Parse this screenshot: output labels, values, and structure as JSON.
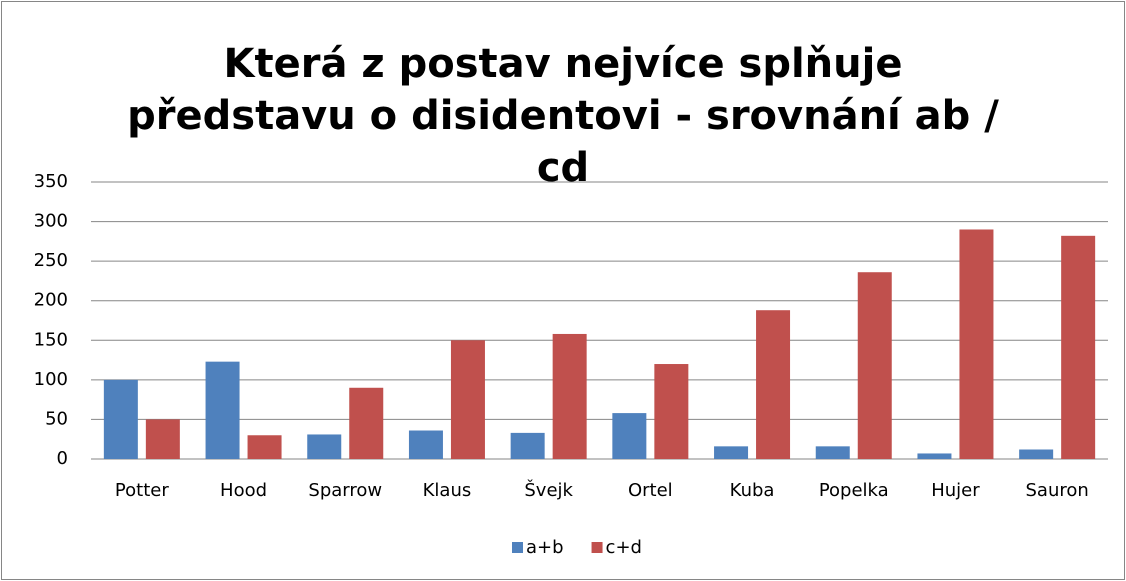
{
  "chart_data": {
    "type": "bar",
    "title": "Která z postav nejvíce splňuje představu o disidentovi - srovnání ab / cd",
    "categories": [
      "Potter",
      "Hood",
      "Sparrow",
      "Klaus",
      "Švejk",
      "Ortel",
      "Kuba",
      "Popelka",
      "Hujer",
      "Sauron"
    ],
    "series": [
      {
        "name": "a+b",
        "color": "#4f81bd",
        "values": [
          100,
          123,
          31,
          36,
          33,
          58,
          16,
          16,
          7,
          12
        ]
      },
      {
        "name": "c+d",
        "color": "#c0504d",
        "values": [
          50,
          30,
          90,
          150,
          158,
          120,
          188,
          236,
          290,
          282
        ]
      }
    ],
    "ylim": [
      0,
      350
    ],
    "yticks": [
      0,
      50,
      100,
      150,
      200,
      250,
      300,
      350
    ],
    "grid": true,
    "legend": "bottom"
  }
}
